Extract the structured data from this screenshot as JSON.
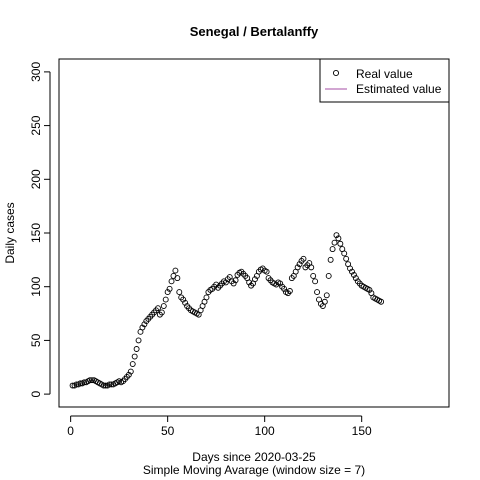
{
  "chart_data": {
    "type": "scatter",
    "title": "Senegal / Bertalanffy",
    "xlabel": "Days since 2020-03-25",
    "subtitle": "Simple Moving Avarage (window size = 7)",
    "ylabel": "Daily cases",
    "xlim": [
      -6,
      195
    ],
    "ylim": [
      -12,
      312
    ],
    "x_ticks": [
      0,
      50,
      100,
      150
    ],
    "y_ticks": [
      0,
      50,
      100,
      150,
      200,
      250,
      300
    ],
    "legend_position": "top-right",
    "grid": false,
    "series": [
      {
        "name": "Real value",
        "marker": "open-circle",
        "color": "#000000",
        "x": [
          1,
          2,
          3,
          4,
          5,
          6,
          7,
          8,
          9,
          10,
          11,
          12,
          13,
          14,
          15,
          16,
          17,
          18,
          19,
          20,
          21,
          22,
          23,
          24,
          25,
          26,
          27,
          28,
          29,
          30,
          31,
          32,
          33,
          34,
          35,
          36,
          37,
          38,
          39,
          40,
          41,
          42,
          43,
          44,
          45,
          46,
          47,
          48,
          49,
          50,
          51,
          52,
          53,
          54,
          55,
          56,
          57,
          58,
          59,
          60,
          61,
          62,
          63,
          64,
          65,
          66,
          67,
          68,
          69,
          70,
          71,
          72,
          73,
          74,
          75,
          76,
          77,
          78,
          79,
          80,
          81,
          82,
          83,
          84,
          85,
          86,
          87,
          88,
          89,
          90,
          91,
          92,
          93,
          94,
          95,
          96,
          97,
          98,
          99,
          100,
          101,
          102,
          103,
          104,
          105,
          106,
          107,
          108,
          109,
          110,
          111,
          112,
          113,
          114,
          115,
          116,
          117,
          118,
          119,
          120,
          121,
          122,
          123,
          124,
          125,
          126,
          127,
          128,
          129,
          130,
          131,
          132,
          133,
          134,
          135,
          136,
          137,
          138,
          139,
          140,
          141,
          142,
          143,
          144,
          145,
          146,
          147,
          148,
          149,
          150,
          151,
          152,
          153,
          154,
          155,
          156,
          157,
          158,
          159,
          160
        ],
        "y": [
          8,
          8,
          9,
          9,
          10,
          10,
          11,
          11,
          12,
          13,
          13,
          13,
          12,
          11,
          10,
          9,
          8,
          8,
          8,
          9,
          9,
          9,
          10,
          11,
          12,
          11,
          12,
          14,
          16,
          18,
          21,
          28,
          35,
          42,
          50,
          58,
          62,
          65,
          68,
          70,
          72,
          74,
          76,
          78,
          80,
          74,
          76,
          82,
          88,
          95,
          98,
          105,
          110,
          115,
          108,
          95,
          90,
          88,
          85,
          82,
          80,
          78,
          77,
          76,
          75,
          74,
          78,
          82,
          86,
          90,
          95,
          97,
          98,
          100,
          102,
          99,
          101,
          103,
          105,
          104,
          107,
          109,
          105,
          103,
          106,
          111,
          113,
          114,
          112,
          110,
          108,
          104,
          101,
          103,
          107,
          110,
          114,
          116,
          117,
          115,
          114,
          108,
          106,
          104,
          103,
          102,
          104,
          103,
          100,
          98,
          95,
          94,
          96,
          108,
          110,
          114,
          118,
          121,
          124,
          126,
          118,
          120,
          122,
          118,
          110,
          105,
          95,
          88,
          84,
          82,
          86,
          92,
          110,
          125,
          135,
          141,
          148,
          145,
          140,
          135,
          131,
          126,
          121,
          117,
          114,
          111,
          108,
          105,
          103,
          101,
          100,
          99,
          98,
          97,
          94,
          90,
          89,
          88,
          87,
          86
        ]
      },
      {
        "name": "Estimated value",
        "marker": "line",
        "color": "#a64ca6",
        "x": [],
        "y": []
      }
    ]
  }
}
